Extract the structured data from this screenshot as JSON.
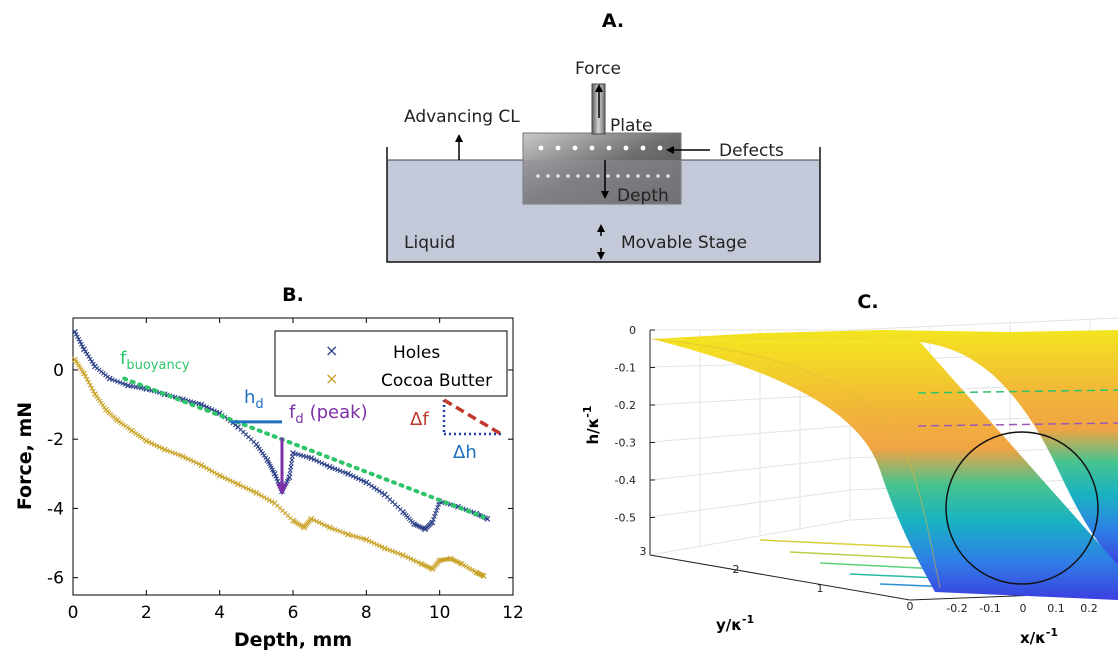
{
  "panels": {
    "a": {
      "title": "A.",
      "labels": {
        "force": "Force",
        "advancing_cl": "Advancing CL",
        "plate": "Plate",
        "defects": "Defects",
        "depth": "Depth",
        "liquid": "Liquid",
        "movable_stage": "Movable Stage"
      },
      "colors": {
        "liquid": "#c3c9d8",
        "plate": "#7d7d7d"
      }
    },
    "b": {
      "title": "B.",
      "annotations": {
        "f_buoyancy_main": "f",
        "f_buoyancy_sub": "buoyancy",
        "h_d_main": "h",
        "h_d_sub": "d",
        "f_d_main": "f",
        "f_d_sub": "d",
        "f_d_suffix": "(peak)",
        "delta_f": "Δf",
        "delta_h": "Δh"
      },
      "colors": {
        "holes": "#2b3f87",
        "cocoa": "#c9a227",
        "fit": "#2ec46a",
        "hd": "#1f6fbf",
        "fd": "#7b2fa6",
        "slope": "#c0392b"
      }
    },
    "c": {
      "title": "C.",
      "xlabel": "x/κ",
      "xlabel_sup": "-1",
      "ylabel": "y/κ",
      "ylabel_sup": "-1",
      "zlabel": "h/κ",
      "zlabel_sup": "-1",
      "z_ticks": [
        "0",
        "-0.1",
        "-0.2",
        "-0.3",
        "-0.4",
        "-0.5"
      ],
      "y_ticks": [
        "3",
        "2",
        "1",
        "0"
      ],
      "x_ticks": [
        "-0.2",
        "-0.1",
        "0",
        "0.1",
        "0.2"
      ]
    }
  },
  "chart_data": {
    "type": "scatter",
    "title": "B.",
    "xlabel": "Depth, mm",
    "ylabel": "Force, mN",
    "xlim": [
      0,
      12
    ],
    "ylim": [
      -6.5,
      1.5
    ],
    "x_ticks": [
      0,
      2,
      4,
      6,
      8,
      10,
      12
    ],
    "y_ticks": [
      0,
      -2,
      -4,
      -6
    ],
    "legend_position": "top-right",
    "series": [
      {
        "name": "Holes",
        "marker": "x",
        "points": [
          [
            0.05,
            1.1
          ],
          [
            0.3,
            0.6
          ],
          [
            0.6,
            0.1
          ],
          [
            1.0,
            -0.25
          ],
          [
            1.5,
            -0.45
          ],
          [
            2.0,
            -0.55
          ],
          [
            2.5,
            -0.7
          ],
          [
            3.0,
            -0.85
          ],
          [
            3.5,
            -1.0
          ],
          [
            4.0,
            -1.25
          ],
          [
            4.5,
            -1.65
          ],
          [
            5.0,
            -2.15
          ],
          [
            5.3,
            -2.6
          ],
          [
            5.5,
            -3.0
          ],
          [
            5.7,
            -3.5
          ],
          [
            5.9,
            -3.1
          ],
          [
            6.0,
            -2.4
          ],
          [
            6.5,
            -2.55
          ],
          [
            7.0,
            -2.8
          ],
          [
            7.5,
            -3.0
          ],
          [
            8.0,
            -3.25
          ],
          [
            8.5,
            -3.6
          ],
          [
            9.0,
            -4.1
          ],
          [
            9.3,
            -4.45
          ],
          [
            9.6,
            -4.6
          ],
          [
            9.8,
            -4.4
          ],
          [
            10.0,
            -3.8
          ],
          [
            10.5,
            -3.95
          ],
          [
            11.0,
            -4.15
          ],
          [
            11.3,
            -4.3
          ]
        ]
      },
      {
        "name": "Cocoa Butter",
        "marker": "x",
        "points": [
          [
            0.05,
            0.3
          ],
          [
            0.3,
            -0.1
          ],
          [
            0.6,
            -0.7
          ],
          [
            0.9,
            -1.15
          ],
          [
            1.2,
            -1.45
          ],
          [
            1.6,
            -1.75
          ],
          [
            2.0,
            -2.05
          ],
          [
            2.5,
            -2.3
          ],
          [
            3.0,
            -2.5
          ],
          [
            3.5,
            -2.75
          ],
          [
            4.0,
            -3.05
          ],
          [
            4.5,
            -3.3
          ],
          [
            5.0,
            -3.55
          ],
          [
            5.5,
            -3.85
          ],
          [
            6.0,
            -4.35
          ],
          [
            6.3,
            -4.55
          ],
          [
            6.5,
            -4.3
          ],
          [
            7.0,
            -4.55
          ],
          [
            7.5,
            -4.75
          ],
          [
            8.0,
            -4.9
          ],
          [
            8.5,
            -5.15
          ],
          [
            9.0,
            -5.35
          ],
          [
            9.5,
            -5.6
          ],
          [
            9.8,
            -5.75
          ],
          [
            10.0,
            -5.5
          ],
          [
            10.3,
            -5.45
          ],
          [
            10.6,
            -5.6
          ],
          [
            11.0,
            -5.85
          ],
          [
            11.2,
            -5.95
          ]
        ]
      }
    ],
    "lines": [
      {
        "role": "buoyancy-fit",
        "style": "dotted",
        "points": [
          [
            1.4,
            -0.25
          ],
          [
            11.2,
            -4.25
          ]
        ]
      },
      {
        "role": "h_d",
        "style": "solid",
        "points": [
          [
            4.3,
            -1.5
          ],
          [
            5.7,
            -1.5
          ]
        ]
      },
      {
        "role": "f_d",
        "style": "arrow",
        "points": [
          [
            5.7,
            -1.95
          ],
          [
            5.7,
            -3.45
          ]
        ]
      }
    ]
  }
}
